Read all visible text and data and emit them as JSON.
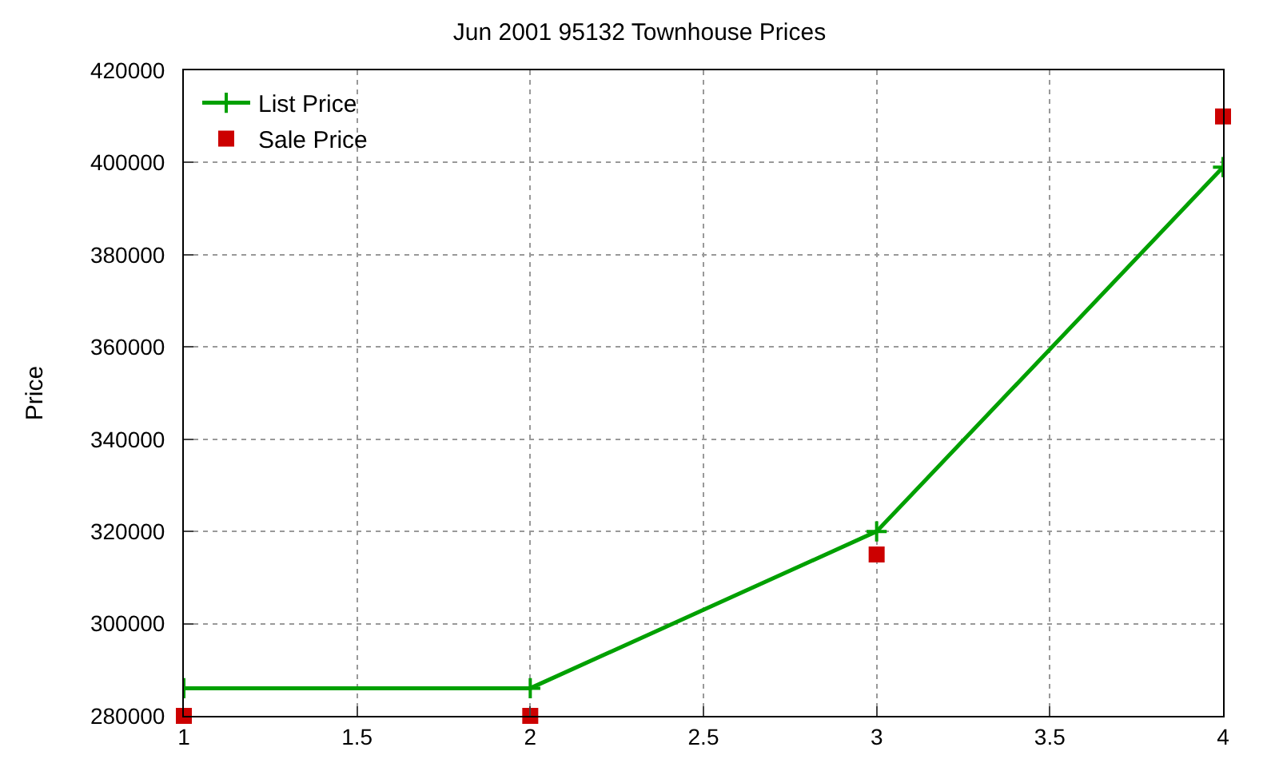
{
  "chart_data": {
    "type": "line",
    "title": "Jun 2001 95132 Townhouse Prices",
    "ylabel": "Price",
    "x": [
      1,
      2,
      3,
      4
    ],
    "series": [
      {
        "name": "List Price",
        "color": "#00a000",
        "values": [
          286000,
          286000,
          320000,
          399000
        ],
        "marker": "cross"
      },
      {
        "name": "Sale Price",
        "color": "#cc0000",
        "values": [
          280000,
          280000,
          315000,
          410000
        ],
        "marker": "square",
        "type": "scatter"
      }
    ],
    "xlim": [
      1,
      4
    ],
    "xticks": [
      1,
      {
        "value": 1.5,
        "label": "1.5"
      },
      2,
      {
        "value": 2.5,
        "label": "2.5"
      },
      3,
      {
        "value": 3.5,
        "label": "3.5"
      },
      4
    ],
    "ylim": [
      280000,
      420000
    ],
    "yticks": [
      280000,
      300000,
      320000,
      340000,
      360000,
      380000,
      400000,
      420000
    ],
    "grid": true,
    "legend": "top left"
  }
}
